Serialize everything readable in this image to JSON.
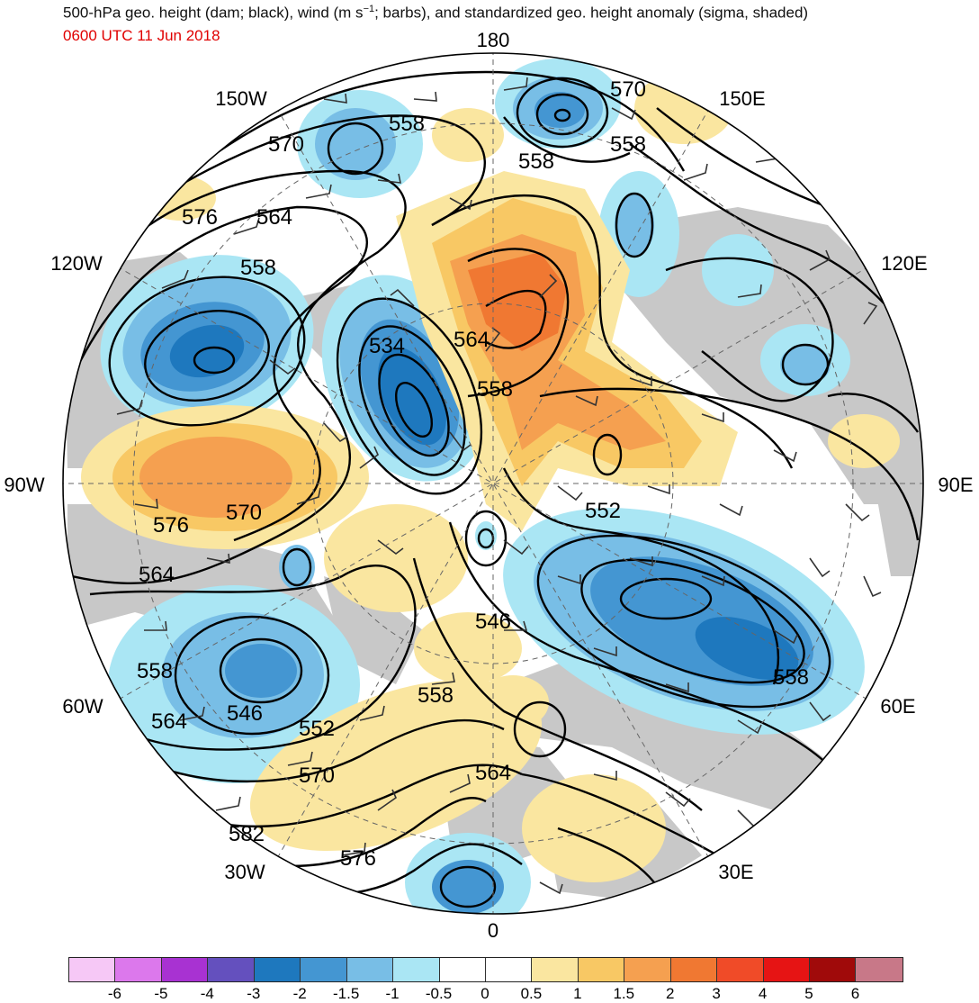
{
  "header": {
    "title_pre": "500-hPa geo. height (dam; black), wind (m s",
    "title_sup": "−1",
    "title_post": "; barbs), and standardized geo. height anomaly (sigma, shaded)",
    "time": "0600 UTC 11 Jun 2018"
  },
  "longitude_labels": {
    "n180": "180",
    "w150": "150W",
    "e150": "150E",
    "w120": "120W",
    "e120": "120E",
    "w90": "90W",
    "e90": "90E",
    "w60": "60W",
    "e60": "60E",
    "w30": "30W",
    "e30": "30E",
    "s0": "0"
  },
  "contour_labels": {
    "c558a": "558",
    "c570a": "570",
    "c570b": "570",
    "c558b": "558",
    "c558c": "558",
    "c576a": "576",
    "c564a": "564",
    "c558d": "558",
    "c534": "534",
    "c564b": "564",
    "c558e": "558",
    "c576b": "576",
    "c570c": "570",
    "c552a": "552",
    "c564c": "564",
    "c546a": "546",
    "c558f": "558",
    "c558g": "558",
    "c564d": "564",
    "c546b": "546",
    "c552b": "552",
    "c558h": "558",
    "c570d": "570",
    "c564e": "564",
    "c582": "582",
    "c576c": "576"
  },
  "colorbar": {
    "colors": [
      "#f6c8f6",
      "#dc78ec",
      "#a832d2",
      "#6450be",
      "#1e78be",
      "#4496d2",
      "#78bee6",
      "#aae6f4",
      "#ffffff",
      "#ffffff",
      "#fae6a0",
      "#f8c864",
      "#f5a050",
      "#f07832",
      "#f04b28",
      "#e61414",
      "#a00a0a",
      "#c87888"
    ],
    "labels": [
      "-6",
      "-5",
      "-4",
      "-3",
      "-2",
      "-1.5",
      "-1",
      "-0.5",
      "0",
      "0.5",
      "1",
      "1.5",
      "2",
      "3",
      "4",
      "5",
      "6"
    ]
  }
}
